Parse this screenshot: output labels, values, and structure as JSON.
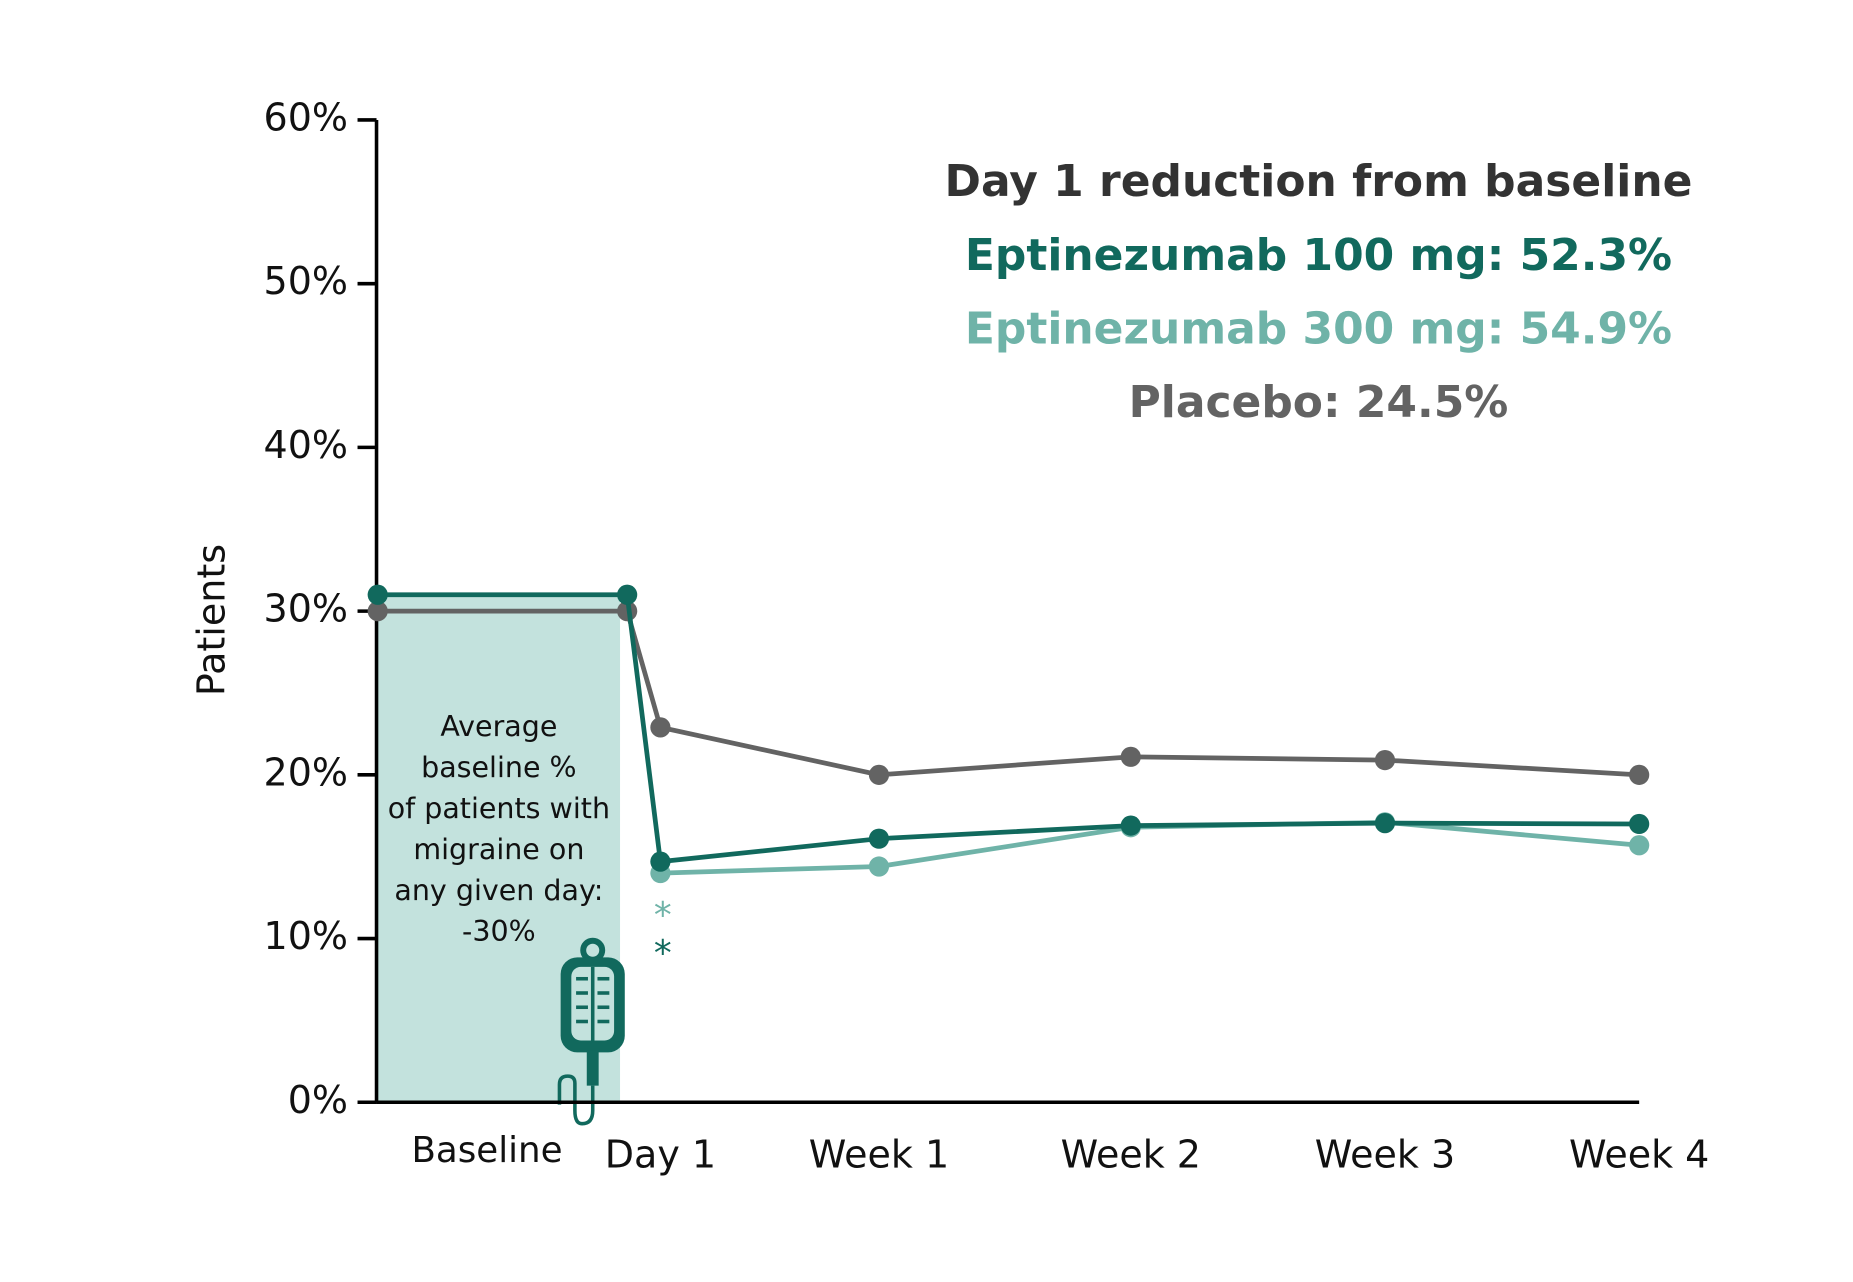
{
  "chart_data": {
    "type": "line",
    "y_label": "Patients",
    "categories": [
      null,
      null,
      "Day 1",
      "Week 1",
      "Week 2",
      "Week 3",
      "Week 4"
    ],
    "baseline_label": "Baseline",
    "ylim": [
      0,
      60
    ],
    "yticks": [
      {
        "value": 0,
        "label": "0%"
      },
      {
        "value": 10,
        "label": "10%"
      },
      {
        "value": 20,
        "label": "20%"
      },
      {
        "value": 30,
        "label": "30%"
      },
      {
        "value": 40,
        "label": "40%"
      },
      {
        "value": 50,
        "label": "50%"
      },
      {
        "value": 60,
        "label": "60%"
      }
    ],
    "series": [
      {
        "name": "Placebo",
        "color": "#636363",
        "values": [
          30,
          30,
          22.9,
          20,
          21.1,
          20.9,
          20
        ]
      },
      {
        "name": "Eptinezumab 300 mg",
        "color": "#6fb3a8",
        "values": [
          null,
          null,
          14,
          14.4,
          16.8,
          17.1,
          15.7
        ]
      },
      {
        "name": "Eptinezumab 100 mg",
        "color": "#11695d",
        "values": [
          31,
          31,
          14.7,
          16.1,
          16.9,
          17.05,
          17
        ]
      }
    ],
    "baseline_fill": "#c3e2dd",
    "baseline_note": [
      "Average",
      "baseline %",
      "of patients with",
      "migraine on",
      "any given day:",
      "-30%"
    ],
    "significance": [
      {
        "text": "*",
        "color": "#6fb3a8"
      },
      {
        "text": "*",
        "color": "#11695d"
      }
    ],
    "annotations": [
      {
        "text": "Day 1 reduction from baseline",
        "color": "#333333"
      },
      {
        "text": "Eptinezumab 100 mg: 52.3%",
        "color": "#11695d"
      },
      {
        "text": "Eptinezumab 300 mg: 54.9%",
        "color": "#6fb3a8"
      },
      {
        "text": "Placebo: 24.5%",
        "color": "#636363"
      }
    ]
  }
}
